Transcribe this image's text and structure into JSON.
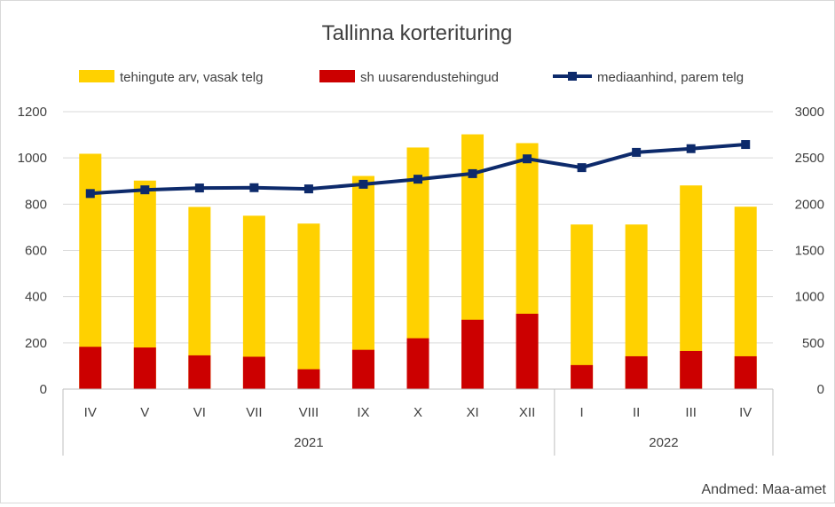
{
  "chart_data": {
    "type": "bar",
    "title": "Tallinna korterituring",
    "source_note": "Andmed: Maa-amet",
    "categories": [
      "IV",
      "V",
      "VI",
      "VII",
      "VIII",
      "IX",
      "X",
      "XI",
      "XII",
      "I",
      "II",
      "III",
      "IV"
    ],
    "groups": [
      {
        "label": "2021",
        "count": 9
      },
      {
        "label": "2022",
        "count": 4
      }
    ],
    "left_axis": {
      "min": 0,
      "max": 1200,
      "ticks": [
        0,
        200,
        400,
        600,
        800,
        1000,
        1200
      ]
    },
    "right_axis": {
      "min": 0,
      "max": 3000,
      "ticks": [
        0,
        500,
        1000,
        1500,
        2000,
        2500,
        3000
      ]
    },
    "gridlines": true,
    "legend_position": "top",
    "series": [
      {
        "name": "tehingute arv, vasak telg",
        "kind": "bar",
        "axis": "left",
        "color": "#FFD100",
        "values": [
          1018,
          902,
          788,
          750,
          716,
          922,
          1045,
          1102,
          1064,
          712,
          712,
          881,
          789
        ]
      },
      {
        "name": "sh uusarendustehingud",
        "kind": "bar",
        "axis": "left",
        "color": "#CC0000",
        "values": [
          183,
          180,
          146,
          140,
          86,
          170,
          220,
          300,
          326,
          104,
          142,
          165,
          142
        ]
      },
      {
        "name": "mediaanhind, parem telg",
        "kind": "line",
        "axis": "right",
        "color": "#0D2A6B",
        "values": [
          2115,
          2155,
          2175,
          2178,
          2165,
          2215,
          2270,
          2330,
          2490,
          2395,
          2560,
          2600,
          2645
        ]
      }
    ]
  }
}
